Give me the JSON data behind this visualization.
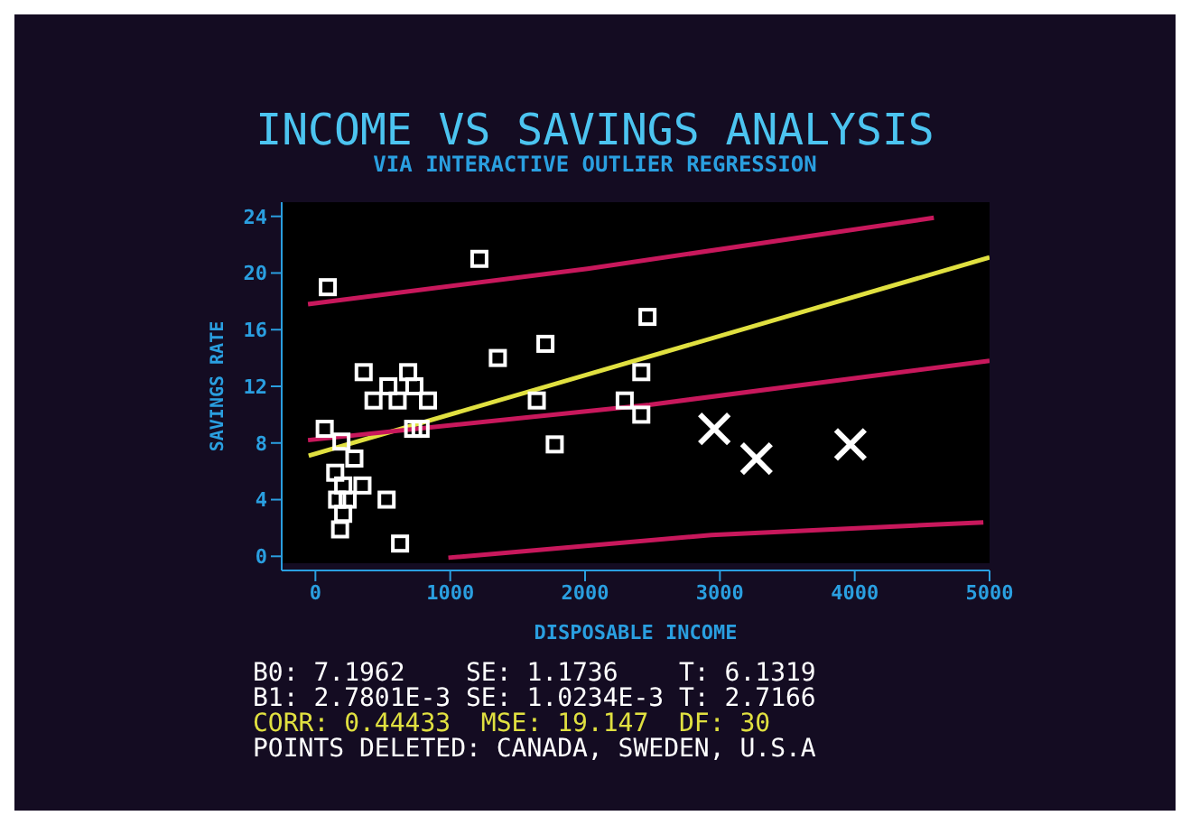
{
  "chart_data": {
    "type": "scatter",
    "title": "INCOME VS SAVINGS ANALYSIS",
    "subtitle": "VIA INTERACTIVE OUTLIER REGRESSION",
    "xlabel": "DISPOSABLE INCOME",
    "ylabel": "SAVINGS RATE",
    "xlim": [
      -250,
      5000
    ],
    "ylim": [
      -1,
      25
    ],
    "xticks": [
      0,
      1000,
      2000,
      3000,
      4000,
      5000
    ],
    "yticks": [
      0,
      4,
      8,
      12,
      16,
      20,
      24
    ],
    "series": [
      {
        "marker": "square",
        "color": "#ffffff",
        "x": [
          92,
          1216,
          2463,
          1706,
          1353,
          358,
          688,
          2417,
          541,
          734,
          431,
          610,
          835,
          1642,
          2294,
          2417,
          69,
          725,
          780,
          193,
          1775,
          289,
          147,
          206,
          349,
          161,
          239,
          528,
          206,
          183,
          628
        ],
        "values": [
          19,
          21,
          16.9,
          15,
          14,
          13,
          13,
          13,
          12,
          12,
          11,
          11,
          11,
          11,
          11,
          10,
          9,
          9,
          9,
          8.1,
          7.9,
          6.9,
          5.9,
          5,
          5,
          4,
          4,
          4,
          3,
          1.9,
          0.9
        ]
      },
      {
        "marker": "cross",
        "color": "#ffffff",
        "x": [
          2959,
          3271,
          3968
        ],
        "values": [
          9,
          6.9,
          7.9
        ]
      },
      {
        "type": "line",
        "marker": "none",
        "color": "#e0e040",
        "x": [
          -50,
          5000
        ],
        "values": [
          7.1,
          21.1
        ]
      },
      {
        "type": "line",
        "marker": "none",
        "color": "#c8185c",
        "x": [
          -55,
          2018,
          4587
        ],
        "values": [
          17.8,
          20.3,
          23.9
        ]
      },
      {
        "type": "line",
        "marker": "none",
        "color": "#c8185c",
        "x": [
          -55,
          2477,
          5000
        ],
        "values": [
          8.2,
          10.7,
          13.8
        ]
      },
      {
        "type": "line",
        "marker": "none",
        "color": "#c8185c",
        "x": [
          986,
          2936,
          4954
        ],
        "values": [
          -0.1,
          1.5,
          2.4
        ]
      }
    ],
    "annotations": [
      "B0: 7.1962    SE: 1.1736    T: 6.1319",
      "B1: 2.7801E-3 SE: 1.0234E-3 T: 2.7166",
      "CORR: 0.44433  MSE: 19.147  DF: 30",
      "POINTS DELETED: CANADA, SWEDEN, U.S.A"
    ]
  }
}
